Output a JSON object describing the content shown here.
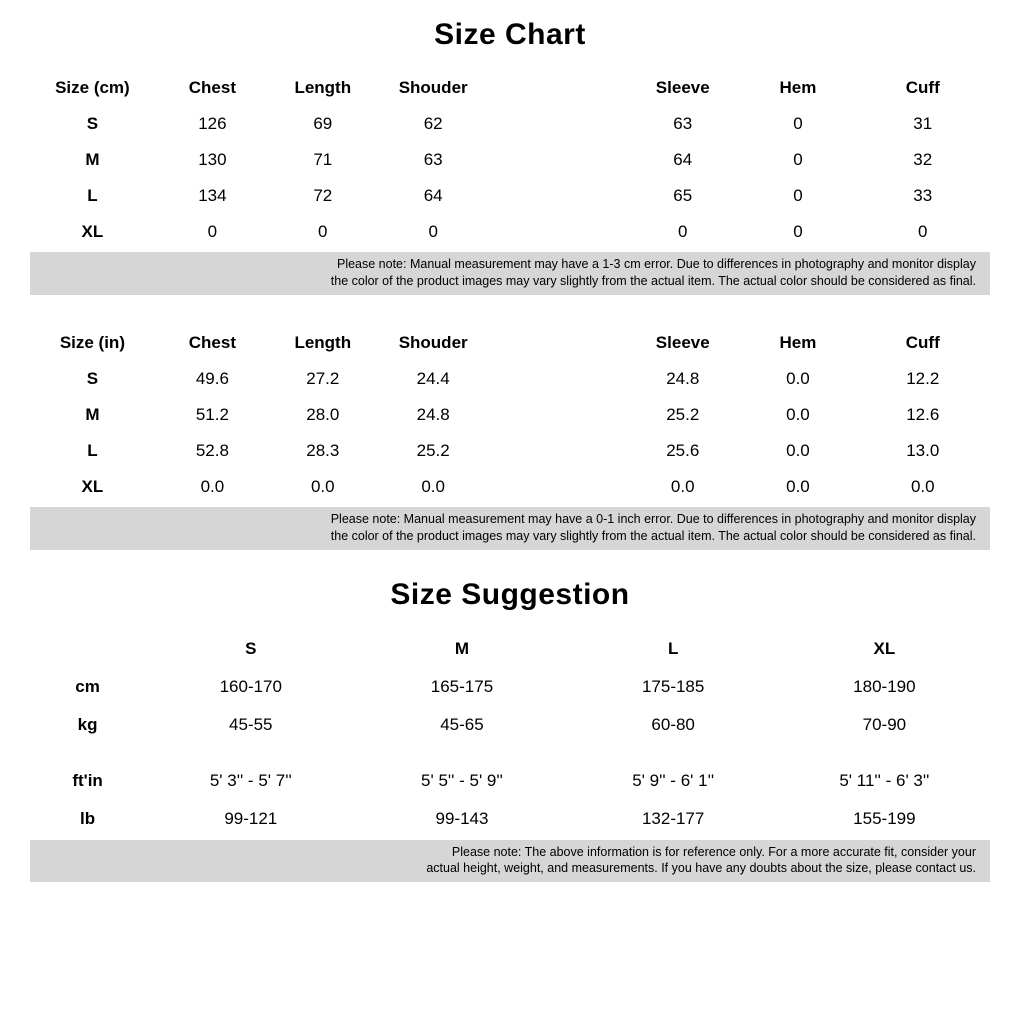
{
  "title": "Size Chart",
  "tableCm": {
    "headers": [
      "Size (cm)",
      "Chest",
      "Length",
      "Shouder",
      "",
      "Sleeve",
      "Hem",
      "Cuff"
    ],
    "rows": [
      [
        "S",
        "126",
        "69",
        "62",
        "",
        "63",
        "0",
        "31"
      ],
      [
        "M",
        "130",
        "71",
        "63",
        "",
        "64",
        "0",
        "32"
      ],
      [
        "L",
        "134",
        "72",
        "64",
        "",
        "65",
        "0",
        "33"
      ],
      [
        "XL",
        "0",
        "0",
        "0",
        "",
        "0",
        "0",
        "0"
      ]
    ],
    "noteLine1": "Please note: Manual measurement may have a 1-3 cm error. Due to differences in photography and monitor display",
    "noteLine2": "the color of the product images may vary slightly from the actual item. The actual color should be considered as final."
  },
  "tableIn": {
    "headers": [
      "Size (in)",
      "Chest",
      "Length",
      "Shouder",
      "",
      "Sleeve",
      "Hem",
      "Cuff"
    ],
    "rows": [
      [
        "S",
        "49.6",
        "27.2",
        "24.4",
        "",
        "24.8",
        "0.0",
        "12.2"
      ],
      [
        "M",
        "51.2",
        "28.0",
        "24.8",
        "",
        "25.2",
        "0.0",
        "12.6"
      ],
      [
        "L",
        "52.8",
        "28.3",
        "25.2",
        "",
        "25.6",
        "0.0",
        "13.0"
      ],
      [
        "XL",
        "0.0",
        "0.0",
        "0.0",
        "",
        "0.0",
        "0.0",
        "0.0"
      ]
    ],
    "noteLine1": "Please note: Manual measurement may have a 0-1 inch error. Due to differences in photography and monitor display",
    "noteLine2": "the color of the product images may vary slightly from the actual item. The actual color should be considered as final."
  },
  "suggestionTitle": "Size Suggestion",
  "suggestion": {
    "headers": [
      "",
      "S",
      "M",
      "L",
      "XL"
    ],
    "rows1": [
      [
        "cm",
        "160-170",
        "165-175",
        "175-185",
        "180-190"
      ],
      [
        "kg",
        "45-55",
        "45-65",
        "60-80",
        "70-90"
      ]
    ],
    "rows2": [
      [
        "ft'in",
        "5' 3'' - 5' 7''",
        "5' 5'' - 5' 9''",
        "5' 9'' - 6' 1''",
        "5' 11'' - 6' 3''"
      ],
      [
        "lb",
        "99-121",
        "99-143",
        "132-177",
        "155-199"
      ]
    ],
    "noteLine1": "Please note: The above information is for reference only. For a more accurate fit, consider your",
    "noteLine2": "actual height, weight, and measurements. If you have any doubts about the size, please contact us."
  },
  "style": {
    "background": "#ffffff",
    "textColor": "#000000",
    "noteBackground": "#d6d6d6",
    "titleFontSize": 30,
    "headerFontSize": 17,
    "cellFontSize": 17,
    "noteFontSize": 12.5
  }
}
